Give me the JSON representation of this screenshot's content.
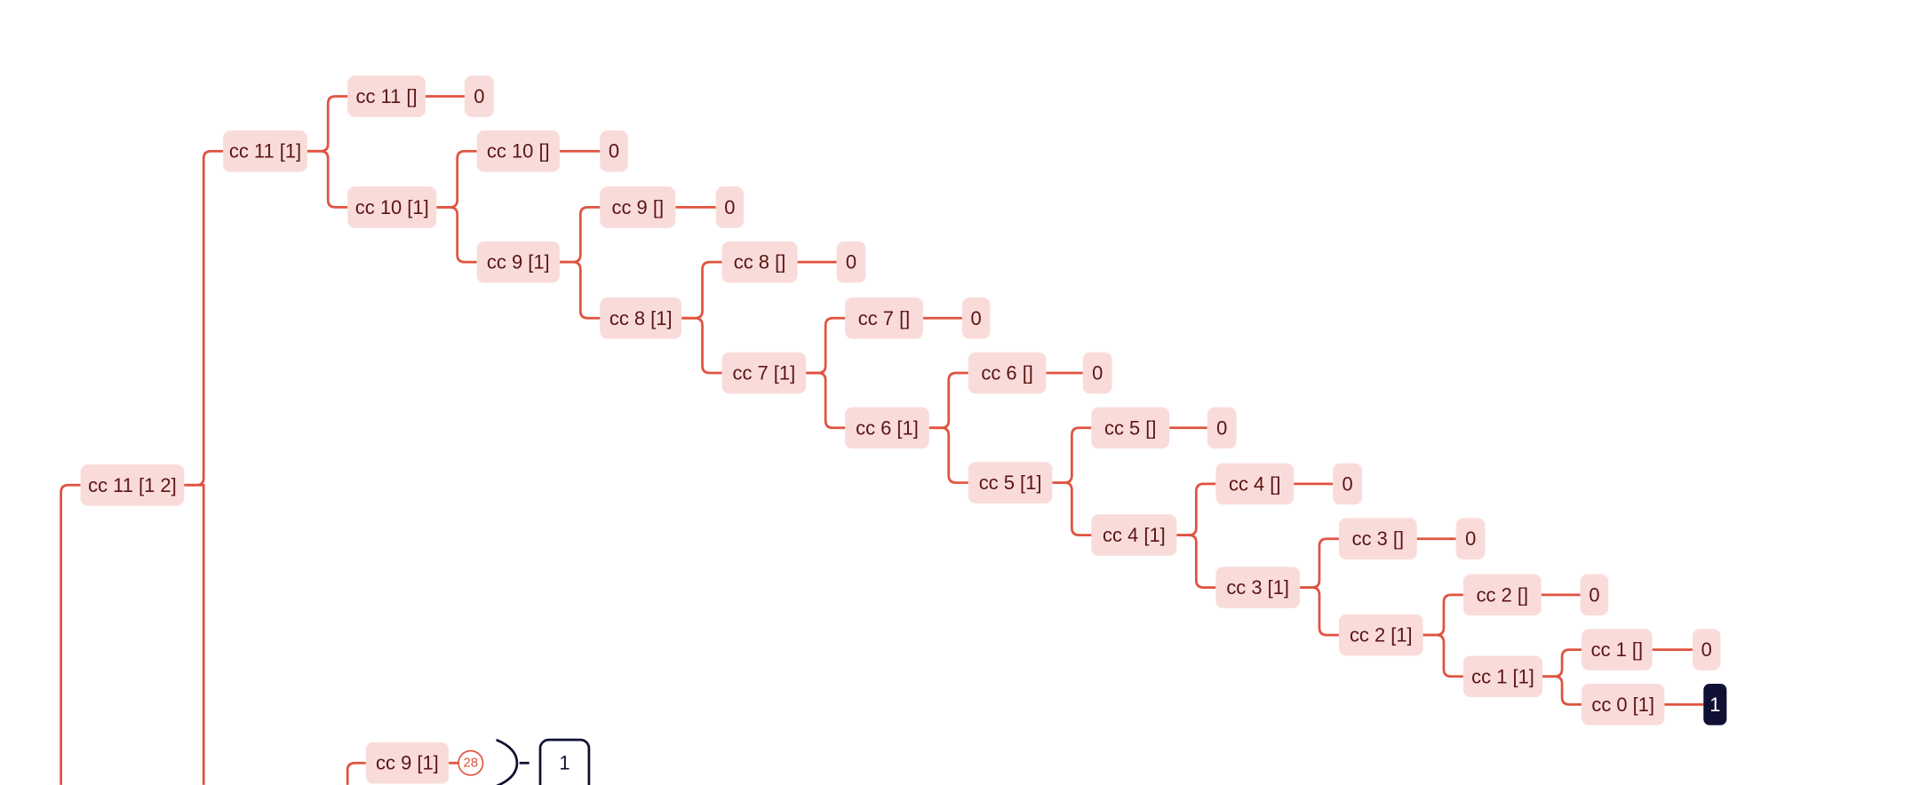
{
  "nodes": [
    "cc 11 [1 2]",
    "cc 11 [1]",
    "cc 11 []",
    "0",
    "cc 10 [1]",
    "cc 10 []",
    "0",
    "cc 9 [1]",
    "cc 9 []",
    "0",
    "cc 8 [1]",
    "cc 8 []",
    "0",
    "cc 7 [1]",
    "cc 7 []",
    "0",
    "cc 6 [1]",
    "cc 6 []",
    "0",
    "cc 5 [1]",
    "cc 5 []",
    "0",
    "cc 4 [1]",
    "cc 4 []",
    "0",
    "cc 3 [1]",
    "cc 3 []",
    "0",
    "cc 2 [1]",
    "cc 2 []",
    "0",
    "cc 1 [1]",
    "cc 1 []",
    "0",
    "cc 0 [1]",
    "1",
    "cc 9 [1]"
  ],
  "badge": "28",
  "result_box": "1"
}
